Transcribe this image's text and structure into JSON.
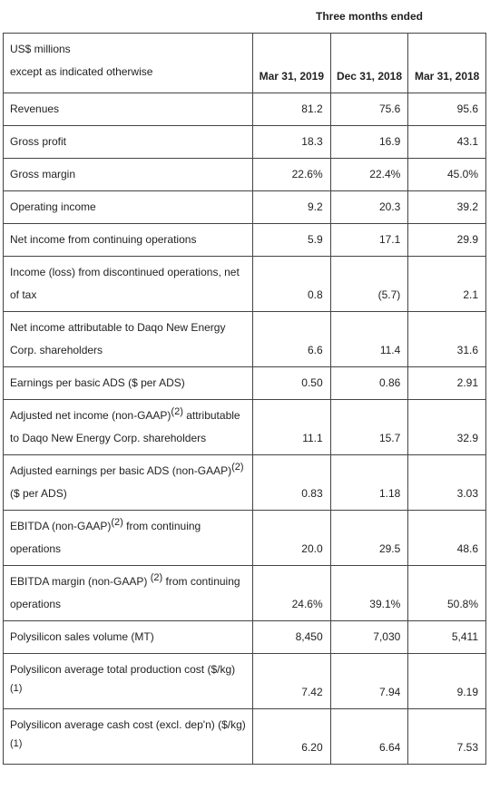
{
  "header": {
    "period_title": "Three months ended",
    "unit_line1": "US$ millions",
    "unit_line2": "except as indicated otherwise",
    "columns": [
      "Mar 31, 2019",
      "Dec 31, 2018",
      "Mar 31, 2018"
    ]
  },
  "table": {
    "rows": [
      {
        "label": [
          {
            "text": "Revenues"
          }
        ],
        "values": [
          "81.2",
          "75.6",
          "95.6"
        ]
      },
      {
        "label": [
          {
            "text": "Gross profit"
          }
        ],
        "values": [
          "18.3",
          "16.9",
          "43.1"
        ]
      },
      {
        "label": [
          {
            "text": "Gross margin"
          }
        ],
        "values": [
          "22.6%",
          "22.4%",
          "45.0%"
        ]
      },
      {
        "label": [
          {
            "text": "Operating income"
          }
        ],
        "values": [
          "9.2",
          "20.3",
          "39.2"
        ]
      },
      {
        "label": [
          {
            "text": "Net income from continuing operations"
          }
        ],
        "values": [
          "5.9",
          "17.1",
          "29.9"
        ]
      },
      {
        "label": [
          {
            "text": "Income (loss) from discontinued operations, net of tax"
          }
        ],
        "values": [
          "0.8",
          "(5.7)",
          "2.1"
        ]
      },
      {
        "label": [
          {
            "text": "Net income attributable to Daqo New Energy Corp. shareholders"
          }
        ],
        "values": [
          "6.6",
          "11.4",
          "31.6"
        ]
      },
      {
        "label": [
          {
            "text": "Earnings per basic ADS ($ per ADS)"
          }
        ],
        "values": [
          "0.50",
          "0.86",
          "2.91"
        ]
      },
      {
        "label": [
          {
            "text": "Adjusted net income (non-GAAP)"
          },
          {
            "sup": "(2)"
          },
          {
            "text": " attributable to Daqo New Energy Corp. shareholders"
          }
        ],
        "values": [
          "11.1",
          "15.7",
          "32.9"
        ]
      },
      {
        "label": [
          {
            "text": "Adjusted earnings per basic ADS (non-GAAP)"
          },
          {
            "sup": "(2)"
          },
          {
            "text": " ($ per ADS)"
          }
        ],
        "values": [
          "0.83",
          "1.18",
          "3.03"
        ]
      },
      {
        "label": [
          {
            "text": "EBITDA (non-GAAP)"
          },
          {
            "sup": "(2)"
          },
          {
            "text": " from continuing operations"
          }
        ],
        "values": [
          "20.0",
          "29.5",
          "48.6"
        ]
      },
      {
        "label": [
          {
            "text": "EBITDA margin (non-GAAP) "
          },
          {
            "sup": "(2)"
          },
          {
            "text": " from continuing operations"
          }
        ],
        "values": [
          "24.6%",
          "39.1%",
          "50.8%"
        ]
      },
      {
        "label": [
          {
            "text": "Polysilicon sales volume (MT)"
          }
        ],
        "values": [
          "8,450",
          "7,030",
          "5,411"
        ]
      },
      {
        "label": [
          {
            "text": "Polysilicon average total production cost ($/kg)"
          },
          {
            "sup": "(1)"
          }
        ],
        "values": [
          "7.42",
          "7.94",
          "9.19"
        ]
      },
      {
        "label": [
          {
            "text": "Polysilicon average cash cost (excl. dep'n) ($/kg)"
          },
          {
            "sup": "(1)"
          }
        ],
        "values": [
          "6.20",
          "6.64",
          "7.53"
        ]
      }
    ]
  }
}
